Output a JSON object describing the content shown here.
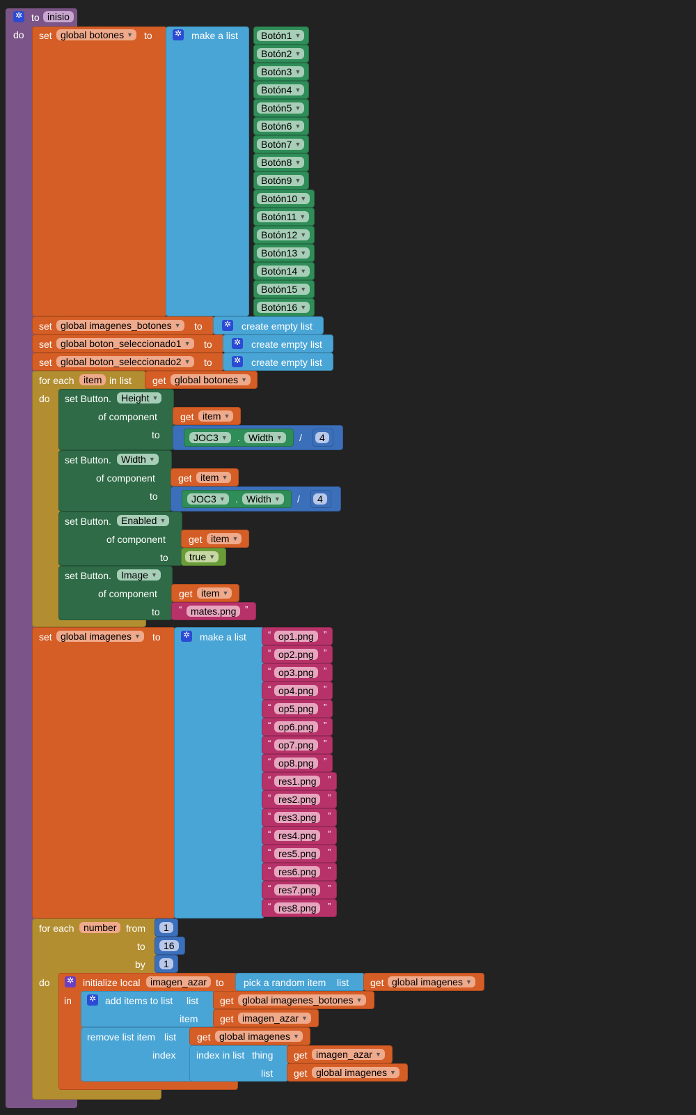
{
  "proc": {
    "to": "to",
    "name": "inisio",
    "do": "do"
  },
  "block1": {
    "set": "set",
    "var": "global botones",
    "to": "to",
    "make_list": "make a list",
    "buttons": [
      "Botón1",
      "Botón2",
      "Botón3",
      "Botón4",
      "Botón5",
      "Botón6",
      "Botón7",
      "Botón8",
      "Botón9",
      "Botón10",
      "Botón11",
      "Botón12",
      "Botón13",
      "Botón14",
      "Botón15",
      "Botón16"
    ]
  },
  "block2": {
    "set": "set",
    "var": "global imagenes_botones",
    "to": "to",
    "value": "create empty list"
  },
  "block3": {
    "set": "set",
    "var": "global boton_seleccionado1",
    "to": "to",
    "value": "create empty list"
  },
  "block4": {
    "set": "set",
    "var": "global boton_seleccionado2",
    "to": "to",
    "value": "create empty list"
  },
  "foreach1": {
    "for_each": "for each",
    "item": "item",
    "in_list": "in list",
    "do": "do",
    "get": "get",
    "list": "global botones",
    "set1": {
      "set_button": "set Button.",
      "prop": "Height",
      "of_component": "of component",
      "to": "to",
      "get": "get",
      "item": "item",
      "comp": "JOC3",
      "dot": ".",
      "comp_prop": "Width",
      "op": "/",
      "num": "4"
    },
    "set2": {
      "set_button": "set Button.",
      "prop": "Width",
      "of_component": "of component",
      "to": "to",
      "get": "get",
      "item": "item",
      "comp": "JOC3",
      "dot": ".",
      "comp_prop": "Width",
      "op": "/",
      "num": "4"
    },
    "set3": {
      "set_button": "set Button.",
      "prop": "Enabled",
      "of_component": "of component",
      "to": "to",
      "get": "get",
      "item": "item",
      "value": "true"
    },
    "set4": {
      "set_button": "set Button.",
      "prop": "Image",
      "of_component": "of component",
      "to": "to",
      "get": "get",
      "item": "item",
      "value": "mates.png"
    }
  },
  "block5": {
    "set": "set",
    "var": "global imagenes",
    "to": "to",
    "make_list": "make a list",
    "images": [
      "op1.png",
      "op2.png",
      "op3.png",
      "op4.png",
      "op5.png",
      "op6.png",
      "op7.png",
      "op8.png",
      "res1.png",
      "res2.png",
      "res3.png",
      "res4.png",
      "res5.png",
      "res6.png",
      "res7.png",
      "res8.png"
    ]
  },
  "foreach2": {
    "for_each": "for each",
    "var": "number",
    "from": "from",
    "from_val": "1",
    "to": "to",
    "to_val": "16",
    "by": "by",
    "by_val": "1",
    "do": "do",
    "init": {
      "label": "initialize local",
      "var": "imagen_azar",
      "to": "to",
      "in": "in",
      "pick": "pick a random item",
      "list": "list",
      "get": "get",
      "list_var": "global imagenes"
    },
    "add": {
      "label": "add items to list",
      "list": "list",
      "get": "get",
      "list_var": "global imagenes_botones",
      "item": "item",
      "item_var": "imagen_azar"
    },
    "remove": {
      "label": "remove list item",
      "list": "list",
      "get": "get",
      "list_var": "global imagenes",
      "index": "index",
      "index_in_list": "index in list",
      "thing": "thing",
      "thing_var": "imagen_azar",
      "list2": "list",
      "list2_var": "global imagenes"
    }
  },
  "colors": {
    "background": "#222222",
    "procedure": "#7b5587",
    "variables": "#d55e26",
    "lists": "#49a5d6",
    "components": "#2e6b46",
    "control": "#b38e31",
    "text": "#b8326a",
    "math": "#3b6fba",
    "logic": "#6a9c3a"
  }
}
